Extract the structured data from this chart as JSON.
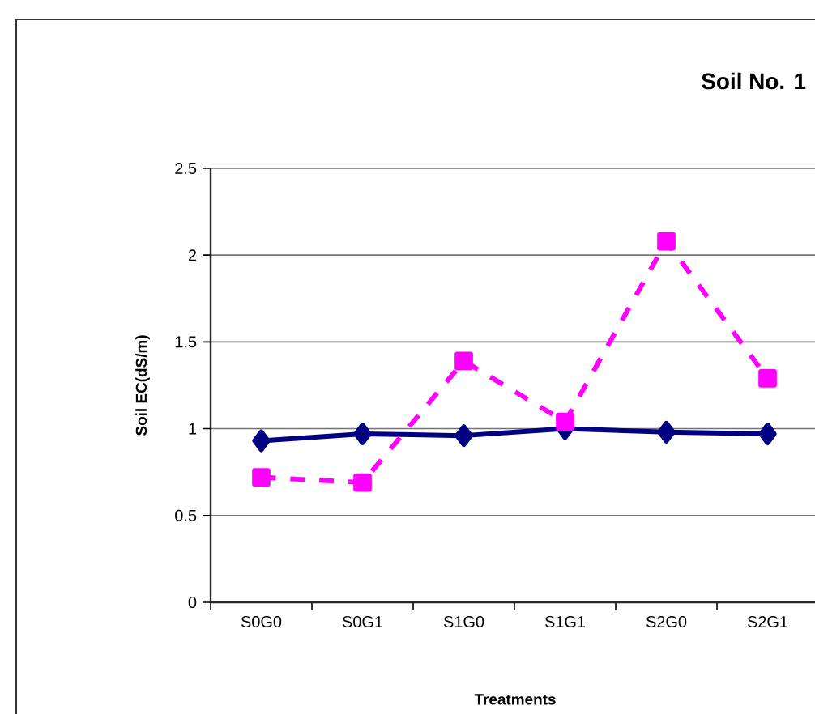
{
  "chart_data": {
    "type": "line",
    "title": "Soil No. 1",
    "xlabel": "Treatments",
    "ylabel": "Soil EC(dS/m)",
    "categories": [
      "S0G0",
      "S0G1",
      "S1G0",
      "S1G1",
      "S2G0",
      "S2G1"
    ],
    "series": [
      {
        "color": "#000080",
        "marker": "diamond",
        "line_style": "solid",
        "values": [
          0.93,
          0.97,
          0.96,
          1.0,
          0.98,
          0.97
        ]
      },
      {
        "color": "#ff00ff",
        "marker": "square",
        "line_style": "dashed",
        "values": [
          0.72,
          0.69,
          1.39,
          1.04,
          2.08,
          1.29
        ]
      }
    ],
    "ylim": [
      0,
      2.5
    ],
    "yticks": [
      0,
      0.5,
      1,
      1.5,
      2,
      2.5
    ],
    "grid": "y"
  }
}
